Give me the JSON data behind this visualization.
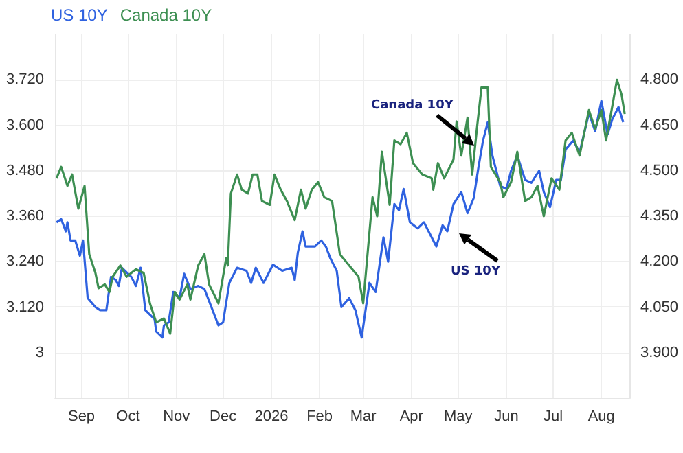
{
  "chart_data": {
    "type": "line",
    "legend": "top left",
    "grid": true,
    "marker": "none",
    "annotations": [
      "Canada 10Y",
      "US 10Y"
    ],
    "xlim": [
      "2025-08-15",
      "2026-08-19"
    ],
    "xticks": [
      {
        "value": "2025-09-01",
        "label": "Sep"
      },
      {
        "value": "2025-10-01",
        "label": "Oct"
      },
      {
        "value": "2025-11-01",
        "label": "Nov"
      },
      {
        "value": "2025-12-01",
        "label": "Dec"
      },
      {
        "value": "2026-01-01",
        "label": "2026"
      },
      {
        "value": "2026-02-01",
        "label": "Feb"
      },
      {
        "value": "2026-03-01",
        "label": "Mar"
      },
      {
        "value": "2026-04-01",
        "label": "Apr"
      },
      {
        "value": "2026-05-01",
        "label": "May"
      },
      {
        "value": "2026-06-01",
        "label": "Jun"
      },
      {
        "value": "2026-07-01",
        "label": "Jul"
      },
      {
        "value": "2026-08-01",
        "label": "Aug"
      }
    ],
    "ylim": [
      2.88,
      3.84
    ],
    "yticks": [
      3,
      {
        "value": 3.12,
        "label": "3.120"
      },
      {
        "value": 3.24,
        "label": "3.240"
      },
      {
        "value": 3.36,
        "label": "3.360"
      },
      {
        "value": 3.48,
        "label": "3.480"
      },
      {
        "value": 3.6,
        "label": "3.600"
      },
      {
        "value": 3.72,
        "label": "3.720"
      }
    ],
    "y2lim": [
      3.75,
      4.95
    ],
    "y2ticks": [
      {
        "value": 3.9,
        "label": "3.900"
      },
      {
        "value": 4.05,
        "label": "4.050"
      },
      {
        "value": 4.2,
        "label": "4.200"
      },
      {
        "value": 4.35,
        "label": "4.350"
      },
      {
        "value": 4.5,
        "label": "4.500"
      },
      {
        "value": 4.65,
        "label": "4.650"
      },
      {
        "value": 4.8,
        "label": "4.800"
      }
    ],
    "series": [
      {
        "name": "US 10Y",
        "color": "#2f62e0",
        "axis": "y2",
        "x": [
          "2025-08-16",
          "2025-08-19",
          "2025-08-22",
          "2025-08-23",
          "2025-08-25",
          "2025-08-28",
          "2025-08-31",
          "2025-09-02",
          "2025-09-05",
          "2025-09-10",
          "2025-09-13",
          "2025-09-17",
          "2025-09-20",
          "2025-09-23",
          "2025-09-25",
          "2025-09-27",
          "2025-10-03",
          "2025-10-06",
          "2025-10-09",
          "2025-10-12",
          "2025-10-18",
          "2025-10-19",
          "2025-10-23",
          "2025-10-24",
          "2025-10-27",
          "2025-10-30",
          "2025-11-03",
          "2025-11-06",
          "2025-11-10",
          "2025-11-15",
          "2025-11-19",
          "2025-11-22",
          "2025-11-28",
          "2025-12-01",
          "2025-12-05",
          "2025-12-10",
          "2025-12-16",
          "2025-12-19",
          "2025-12-22",
          "2025-12-27",
          "2026-01-02",
          "2026-01-08",
          "2026-01-14",
          "2026-01-16",
          "2026-01-18",
          "2026-01-21",
          "2026-01-23",
          "2026-01-29",
          "2026-02-02",
          "2026-02-05",
          "2026-02-08",
          "2026-02-12",
          "2026-02-15",
          "2026-02-20",
          "2026-02-24",
          "2026-02-28",
          "2026-03-05",
          "2026-03-09",
          "2026-03-14",
          "2026-03-17",
          "2026-03-21",
          "2026-03-24",
          "2026-03-27",
          "2026-03-31",
          "2026-04-05",
          "2026-04-09",
          "2026-04-13",
          "2026-04-17",
          "2026-04-21",
          "2026-04-24",
          "2026-04-28",
          "2026-05-03",
          "2026-05-07",
          "2026-05-11",
          "2026-05-14",
          "2026-05-17",
          "2026-05-20",
          "2026-05-23",
          "2026-05-28",
          "2026-06-01",
          "2026-06-04",
          "2026-06-08",
          "2026-06-13",
          "2026-06-17",
          "2026-06-22",
          "2026-06-25",
          "2026-06-29",
          "2026-07-03",
          "2026-07-06",
          "2026-07-09",
          "2026-07-14",
          "2026-07-18",
          "2026-07-24",
          "2026-07-28",
          "2026-08-01",
          "2026-08-05",
          "2026-08-08",
          "2026-08-12",
          "2026-08-15"
        ],
        "values": [
          4.33,
          4.34,
          4.3,
          4.33,
          4.27,
          4.27,
          4.22,
          4.27,
          4.08,
          4.05,
          4.04,
          4.04,
          4.15,
          4.14,
          4.12,
          4.18,
          4.15,
          4.12,
          4.18,
          4.04,
          4.01,
          3.97,
          3.95,
          3.99,
          4.0,
          4.1,
          4.08,
          4.16,
          4.11,
          4.12,
          4.11,
          4.07,
          3.99,
          4.0,
          4.13,
          4.18,
          4.17,
          4.13,
          4.18,
          4.13,
          4.19,
          4.17,
          4.18,
          4.14,
          4.23,
          4.3,
          4.25,
          4.25,
          4.27,
          4.25,
          4.21,
          4.17,
          4.05,
          4.08,
          4.04,
          3.95,
          4.13,
          4.1,
          4.28,
          4.2,
          4.39,
          4.37,
          4.44,
          4.33,
          4.31,
          4.33,
          4.29,
          4.25,
          4.32,
          4.3,
          4.39,
          4.43,
          4.36,
          4.41,
          4.51,
          4.6,
          4.66,
          4.55,
          4.45,
          4.44,
          4.5,
          4.55,
          4.47,
          4.46,
          4.5,
          4.43,
          4.38,
          4.47,
          4.47,
          4.57,
          4.6,
          4.56,
          4.69,
          4.63,
          4.73,
          4.62,
          4.67,
          4.71,
          4.66
        ]
      },
      {
        "name": "Canada 10Y",
        "color": "#3d8f52",
        "x": [
          "2025-08-16",
          "2025-08-19",
          "2025-08-23",
          "2025-08-26",
          "2025-08-30",
          "2025-09-03",
          "2025-09-06",
          "2025-09-10",
          "2025-09-12",
          "2025-09-16",
          "2025-09-19",
          "2025-09-21",
          "2025-09-26",
          "2025-09-30",
          "2025-10-06",
          "2025-10-11",
          "2025-10-15",
          "2025-10-19",
          "2025-10-24",
          "2025-10-28",
          "2025-10-31",
          "2025-11-03",
          "2025-11-08",
          "2025-11-10",
          "2025-11-15",
          "2025-11-19",
          "2025-11-22",
          "2025-11-28",
          "2025-12-03",
          "2025-12-04",
          "2025-12-06",
          "2025-12-10",
          "2025-12-13",
          "2025-12-17",
          "2025-12-20",
          "2025-12-23",
          "2025-12-26",
          "2025-12-31",
          "2026-01-03",
          "2026-01-07",
          "2026-01-11",
          "2026-01-16",
          "2026-01-20",
          "2026-01-23",
          "2026-01-27",
          "2026-01-31",
          "2026-02-04",
          "2026-02-09",
          "2026-02-14",
          "2026-02-22",
          "2026-02-26",
          "2026-03-01",
          "2026-03-07",
          "2026-03-10",
          "2026-03-13",
          "2026-03-18",
          "2026-03-21",
          "2026-03-25",
          "2026-03-29",
          "2026-04-02",
          "2026-04-08",
          "2026-04-14",
          "2026-04-15",
          "2026-04-18",
          "2026-04-22",
          "2026-04-28",
          "2026-04-30",
          "2026-05-03",
          "2026-05-07",
          "2026-05-10",
          "2026-05-13",
          "2026-05-16",
          "2026-05-20",
          "2026-05-22",
          "2026-05-28",
          "2026-05-30",
          "2026-06-04",
          "2026-06-08",
          "2026-06-13",
          "2026-06-17",
          "2026-06-21",
          "2026-06-25",
          "2026-06-30",
          "2026-07-05",
          "2026-07-09",
          "2026-07-13",
          "2026-07-18",
          "2026-07-21",
          "2026-07-24",
          "2026-07-28",
          "2026-08-01",
          "2026-08-04",
          "2026-08-08",
          "2026-08-11",
          "2026-08-14",
          "2026-08-16"
        ],
        "values": [
          3.46,
          3.49,
          3.44,
          3.47,
          3.38,
          3.44,
          3.26,
          3.21,
          3.17,
          3.18,
          3.16,
          3.2,
          3.23,
          3.2,
          3.22,
          3.21,
          3.13,
          3.08,
          3.09,
          3.05,
          3.16,
          3.14,
          3.18,
          3.14,
          3.23,
          3.26,
          3.18,
          3.13,
          3.25,
          3.23,
          3.42,
          3.47,
          3.43,
          3.42,
          3.47,
          3.47,
          3.4,
          3.39,
          3.47,
          3.43,
          3.4,
          3.35,
          3.43,
          3.38,
          3.43,
          3.45,
          3.41,
          3.4,
          3.26,
          3.22,
          3.2,
          3.13,
          3.41,
          3.36,
          3.53,
          3.39,
          3.56,
          3.55,
          3.58,
          3.5,
          3.47,
          3.46,
          3.43,
          3.5,
          3.46,
          3.51,
          3.61,
          3.52,
          3.62,
          3.47,
          3.59,
          3.7,
          3.7,
          3.49,
          3.45,
          3.41,
          3.45,
          3.53,
          3.4,
          3.41,
          3.44,
          3.36,
          3.46,
          3.43,
          3.56,
          3.58,
          3.52,
          3.58,
          3.64,
          3.59,
          3.64,
          3.56,
          3.65,
          3.72,
          3.68,
          3.63
        ]
      }
    ]
  }
}
